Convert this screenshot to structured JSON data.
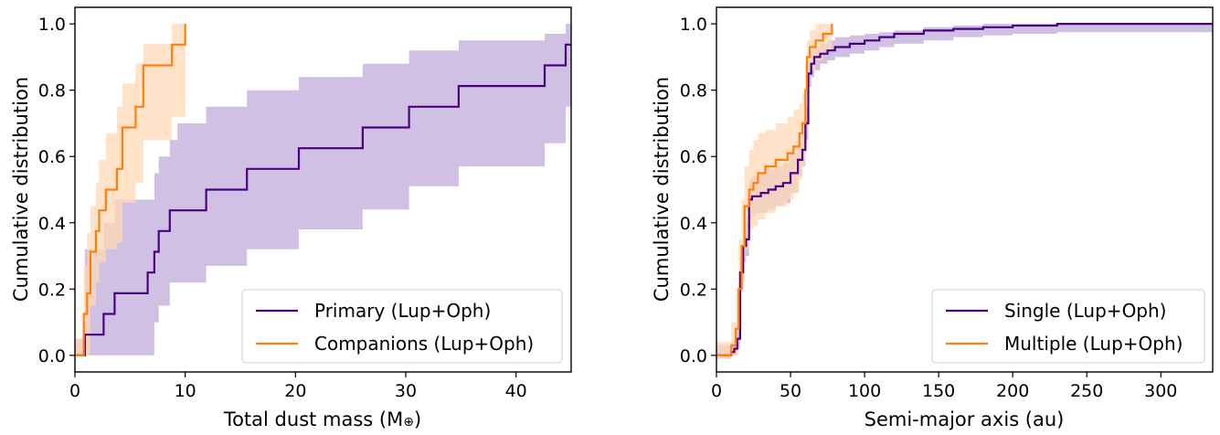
{
  "colors": {
    "purple": "#4b0082",
    "purple_band": "#cdbde2",
    "orange": "#ff7f0e",
    "orange_band": "#ffd8b4"
  },
  "chart_data": [
    {
      "type": "line",
      "step": true,
      "xlabel": "Total dust mass (M",
      "xlabel_unit_symbol": "⊕",
      "xlabel_close": ")",
      "ylabel": "Cumulative distribution",
      "xlim": [
        0,
        45
      ],
      "ylim": [
        -0.05,
        1.05
      ],
      "xticks": [
        0,
        10,
        20,
        30,
        40
      ],
      "yticks": [
        0.0,
        0.2,
        0.4,
        0.6,
        0.8,
        1.0
      ],
      "ytick_labels": [
        "0.0",
        "0.2",
        "0.4",
        "0.6",
        "0.8",
        "1.0"
      ],
      "legend_position": "bottom-right",
      "series": [
        {
          "name": "Primary (Lup+Oph)",
          "color_key": "purple",
          "x": [
            0,
            0.7,
            0.9,
            2.6,
            3.6,
            6.6,
            7.2,
            7.6,
            8.6,
            9.3,
            11.9,
            15.6,
            20.3,
            26.1,
            30.3,
            34.8,
            42.6,
            44.5,
            45
          ],
          "y": [
            0,
            0,
            0.0625,
            0.125,
            0.1875,
            0.25,
            0.3125,
            0.375,
            0.4375,
            0.4375,
            0.5,
            0.5625,
            0.625,
            0.6875,
            0.75,
            0.8125,
            0.875,
            0.9375,
            0.9375
          ],
          "band_x": [
            0,
            0.7,
            0.9,
            2.6,
            3.6,
            6.6,
            7.2,
            7.6,
            8.6,
            9.3,
            11.9,
            15.6,
            20.3,
            26.1,
            30.3,
            34.8,
            42.6,
            44.5,
            45
          ],
          "band_lo": [
            0,
            0,
            0.0,
            0.0,
            0.0,
            0.0,
            0.1,
            0.15,
            0.22,
            0.22,
            0.27,
            0.32,
            0.38,
            0.44,
            0.51,
            0.57,
            0.64,
            0.75,
            0.75
          ],
          "band_hi": [
            0.05,
            0.05,
            0.32,
            0.4,
            0.47,
            0.47,
            0.55,
            0.6,
            0.65,
            0.7,
            0.75,
            0.8,
            0.84,
            0.88,
            0.92,
            0.95,
            0.97,
            1.0,
            1.0
          ]
        },
        {
          "name": "Companions (Lup+Oph)",
          "color_key": "orange",
          "x": [
            0,
            0.6,
            0.8,
            1.1,
            1.4,
            1.9,
            2.2,
            2.8,
            3.8,
            4.3,
            5.5,
            6.2,
            8.8,
            10.0
          ],
          "y": [
            0,
            0,
            0.125,
            0.1875,
            0.3125,
            0.375,
            0.4375,
            0.5,
            0.5625,
            0.6875,
            0.75,
            0.875,
            0.9375,
            1.0
          ],
          "band_x": [
            0,
            0.6,
            0.8,
            1.1,
            1.4,
            1.9,
            2.2,
            2.8,
            3.8,
            4.3,
            5.5,
            6.2,
            8.8,
            10.0
          ],
          "band_lo": [
            0,
            0,
            0.0,
            0.0,
            0.15,
            0.22,
            0.28,
            0.32,
            0.34,
            0.46,
            0.52,
            0.65,
            0.72,
            0.72
          ],
          "band_hi": [
            0.05,
            0.05,
            0.27,
            0.37,
            0.45,
            0.52,
            0.59,
            0.67,
            0.75,
            0.82,
            0.88,
            0.94,
            1.0,
            1.0
          ]
        }
      ]
    },
    {
      "type": "line",
      "step": true,
      "xlabel": "Semi-major axis (au)",
      "ylabel": "Cumulative distribution",
      "xlim": [
        0,
        335
      ],
      "ylim": [
        -0.05,
        1.05
      ],
      "xticks": [
        0,
        50,
        100,
        150,
        200,
        250,
        300
      ],
      "yticks": [
        0.0,
        0.2,
        0.4,
        0.6,
        0.8,
        1.0
      ],
      "ytick_labels": [
        "0.0",
        "0.2",
        "0.4",
        "0.6",
        "0.8",
        "1.0"
      ],
      "legend_position": "bottom-right",
      "series": [
        {
          "name": "Single (Lup+Oph)",
          "color_key": "purple",
          "x": [
            0,
            5,
            10,
            12,
            14,
            16,
            18,
            20,
            22,
            24,
            26,
            30,
            35,
            40,
            45,
            50,
            55,
            58,
            60,
            62,
            64,
            66,
            70,
            75,
            80,
            90,
            100,
            110,
            120,
            140,
            160,
            180,
            200,
            230,
            260,
            300,
            335
          ],
          "y": [
            0,
            0,
            0.01,
            0.02,
            0.05,
            0.25,
            0.33,
            0.35,
            0.47,
            0.48,
            0.48,
            0.49,
            0.5,
            0.51,
            0.52,
            0.55,
            0.59,
            0.62,
            0.7,
            0.85,
            0.88,
            0.9,
            0.91,
            0.92,
            0.93,
            0.94,
            0.95,
            0.96,
            0.97,
            0.98,
            0.985,
            0.99,
            0.995,
            1.0,
            1.0,
            1.0,
            1.0
          ],
          "band_x": [
            0,
            5,
            10,
            12,
            14,
            16,
            18,
            20,
            22,
            24,
            26,
            30,
            35,
            40,
            45,
            50,
            55,
            58,
            60,
            62,
            64,
            66,
            70,
            75,
            80,
            90,
            100,
            110,
            120,
            140,
            160,
            180,
            200,
            230,
            260,
            300,
            335
          ],
          "band_lo": [
            -0.01,
            -0.01,
            0.0,
            0.0,
            0.02,
            0.2,
            0.28,
            0.3,
            0.41,
            0.42,
            0.43,
            0.43,
            0.44,
            0.45,
            0.46,
            0.49,
            0.54,
            0.57,
            0.65,
            0.81,
            0.84,
            0.86,
            0.88,
            0.89,
            0.9,
            0.91,
            0.92,
            0.93,
            0.94,
            0.95,
            0.96,
            0.965,
            0.97,
            0.975,
            0.975,
            0.975,
            0.975
          ],
          "band_hi": [
            0.03,
            0.03,
            0.04,
            0.05,
            0.09,
            0.3,
            0.38,
            0.4,
            0.53,
            0.54,
            0.54,
            0.55,
            0.56,
            0.57,
            0.58,
            0.61,
            0.64,
            0.67,
            0.75,
            0.89,
            0.92,
            0.93,
            0.94,
            0.95,
            0.96,
            0.965,
            0.97,
            0.975,
            0.98,
            0.99,
            0.995,
            1.0,
            1.0,
            1.0,
            1.0,
            1.0,
            1.0
          ]
        },
        {
          "name": "Multiple (Lup+Oph)",
          "color_key": "orange",
          "x": [
            0,
            7,
            10,
            13,
            15,
            17,
            19,
            22,
            25,
            28,
            33,
            40,
            48,
            52,
            56,
            58,
            60,
            61,
            63,
            67,
            72,
            78
          ],
          "y": [
            0,
            0,
            0.03,
            0.08,
            0.2,
            0.33,
            0.45,
            0.5,
            0.52,
            0.55,
            0.57,
            0.59,
            0.61,
            0.63,
            0.67,
            0.7,
            0.8,
            0.9,
            0.93,
            0.95,
            0.97,
            1.0
          ],
          "band_x": [
            0,
            7,
            10,
            13,
            15,
            17,
            19,
            22,
            25,
            28,
            33,
            40,
            48,
            52,
            56,
            58,
            60,
            61,
            63,
            67,
            72,
            78
          ],
          "band_lo": [
            -0.01,
            -0.01,
            0.0,
            0.0,
            0.08,
            0.22,
            0.32,
            0.38,
            0.39,
            0.41,
            0.43,
            0.45,
            0.47,
            0.49,
            0.53,
            0.57,
            0.7,
            0.82,
            0.86,
            0.89,
            0.92,
            0.95
          ],
          "band_hi": [
            0.04,
            0.04,
            0.1,
            0.2,
            0.35,
            0.47,
            0.57,
            0.62,
            0.65,
            0.67,
            0.68,
            0.7,
            0.72,
            0.74,
            0.76,
            0.79,
            0.88,
            0.95,
            0.98,
            1.0,
            1.0,
            1.0
          ]
        }
      ]
    }
  ]
}
